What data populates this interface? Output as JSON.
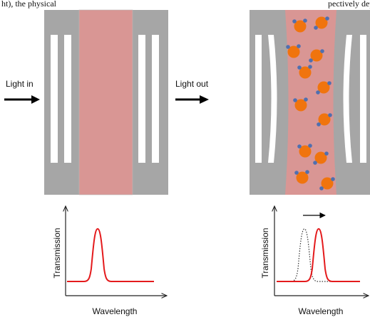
{
  "caption_fragment": "ht), the physical",
  "caption_fragment_right": "pectively depend",
  "labels": {
    "light_in": "Light in",
    "light_out": "Light out"
  },
  "plots": {
    "left": {
      "xlabel": "Wavelength",
      "ylabel": "Transmission"
    },
    "right": {
      "xlabel": "Wavelength",
      "ylabel": "Transmission"
    }
  },
  "colors": {
    "frame_gray": "#a6a6a6",
    "cavity_pink": "#d99694",
    "particle_orange": "#f0740e",
    "particle_blue": "#4f6fb0",
    "peak_red": "#e41a1c",
    "dotted_peak": "#333333"
  }
}
